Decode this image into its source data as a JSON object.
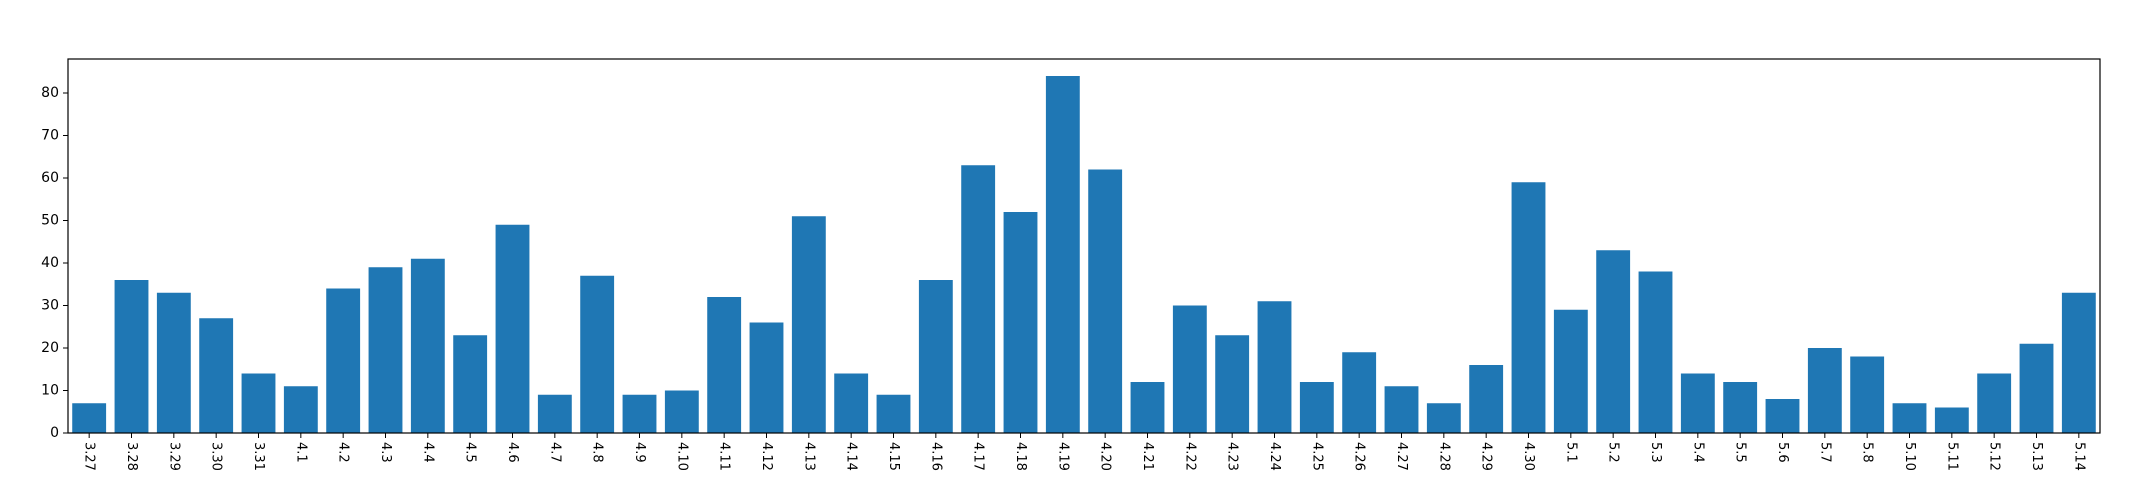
{
  "chart_data": {
    "type": "bar",
    "title": "",
    "xlabel": "",
    "ylabel": "",
    "categories": [
      "3.27",
      "3.28",
      "3.29",
      "3.30",
      "3.31",
      "4.1",
      "4.2",
      "4.3",
      "4.4",
      "4.5",
      "4.6",
      "4.7",
      "4.8",
      "4.9",
      "4.10",
      "4.11",
      "4.12",
      "4.13",
      "4.14",
      "4.15",
      "4.16",
      "4.17",
      "4.18",
      "4.19",
      "4.20",
      "4.21",
      "4.22",
      "4.23",
      "4.24",
      "4.25",
      "4.26",
      "4.27",
      "4.28",
      "4.29",
      "4.30",
      "5.1",
      "5.2",
      "5.3",
      "5.4",
      "5.5",
      "5.6",
      "5.7",
      "5.8",
      "5.10",
      "5.11",
      "5.12",
      "5.13",
      "5.14"
    ],
    "values": [
      7,
      36,
      33,
      27,
      14,
      11,
      34,
      39,
      41,
      23,
      49,
      9,
      37,
      9,
      10,
      32,
      26,
      51,
      14,
      9,
      36,
      63,
      52,
      84,
      62,
      12,
      30,
      23,
      31,
      12,
      19,
      11,
      7,
      16,
      59,
      29,
      43,
      38,
      14,
      12,
      8,
      20,
      18,
      7,
      6,
      14,
      21,
      33
    ],
    "ylim": [
      0,
      88
    ],
    "yticks": [
      0,
      10,
      20,
      30,
      40,
      50,
      60,
      70,
      80
    ],
    "bar_color": "#1f77b4",
    "grid": false,
    "x_tick_rotation": "vertical"
  }
}
